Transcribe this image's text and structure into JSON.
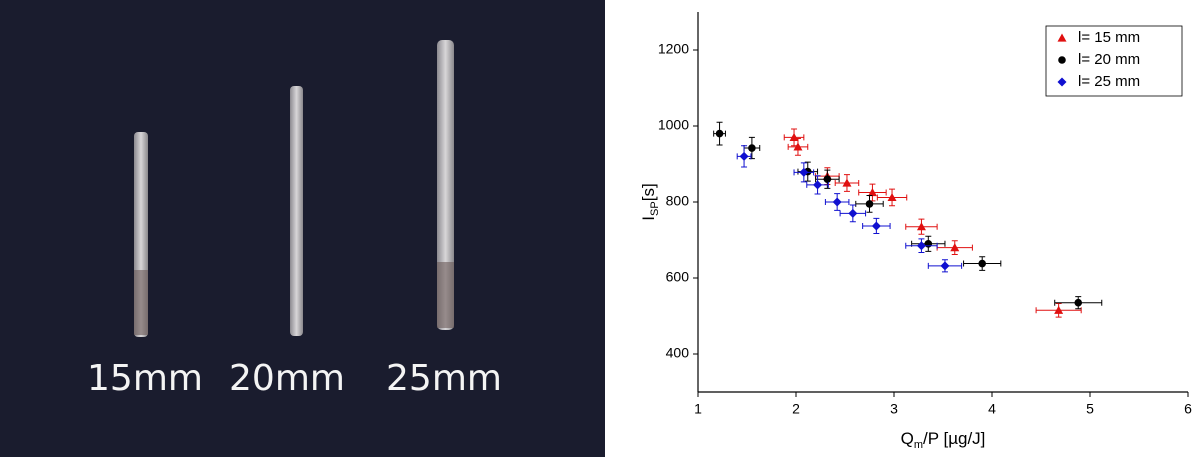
{
  "photo": {
    "labels": [
      "15mm",
      "20mm",
      "25mm"
    ]
  },
  "chart_data": {
    "type": "scatter",
    "xlabel": {
      "main": "Q",
      "sub": "m",
      "rest": "/P [µg/J]"
    },
    "ylabel": {
      "main": "I",
      "sub": "SP",
      "rest": "[s]"
    },
    "xlim": [
      1,
      6
    ],
    "xticks": [
      1,
      2,
      3,
      4,
      5,
      6
    ],
    "ylim": [
      300,
      1300
    ],
    "yticks": [
      400,
      600,
      800,
      1000,
      1200
    ],
    "legend": "upper right",
    "series": [
      {
        "name": "l= 15 mm",
        "color": "#e01010",
        "marker": "triangle",
        "x": [
          1.98,
          2.02,
          2.32,
          2.52,
          2.78,
          2.98,
          3.28,
          3.62,
          4.68
        ],
        "y": [
          970,
          945,
          868,
          850,
          825,
          812,
          735,
          680,
          515
        ],
        "xerr": [
          0.1,
          0.1,
          0.12,
          0.12,
          0.14,
          0.15,
          0.16,
          0.18,
          0.23
        ],
        "yerr": [
          22,
          22,
          22,
          22,
          22,
          22,
          20,
          18,
          18
        ]
      },
      {
        "name": "l= 20 mm",
        "color": "#000000",
        "marker": "circle",
        "x": [
          1.22,
          1.55,
          2.12,
          2.32,
          2.75,
          3.35,
          3.9,
          4.88
        ],
        "y": [
          980,
          942,
          880,
          860,
          795,
          690,
          638,
          535
        ],
        "xerr": [
          0.06,
          0.08,
          0.1,
          0.12,
          0.14,
          0.17,
          0.19,
          0.24
        ],
        "yerr": [
          30,
          28,
          25,
          24,
          22,
          20,
          18,
          16
        ]
      },
      {
        "name": "l= 25 mm",
        "color": "#1010d0",
        "marker": "diamond",
        "x": [
          1.47,
          2.08,
          2.22,
          2.42,
          2.58,
          2.82,
          3.28,
          3.52
        ],
        "y": [
          920,
          878,
          845,
          800,
          770,
          737,
          685,
          632
        ],
        "xerr": [
          0.07,
          0.1,
          0.11,
          0.12,
          0.13,
          0.14,
          0.16,
          0.17
        ],
        "yerr": [
          28,
          25,
          24,
          22,
          22,
          20,
          18,
          16
        ]
      }
    ]
  }
}
